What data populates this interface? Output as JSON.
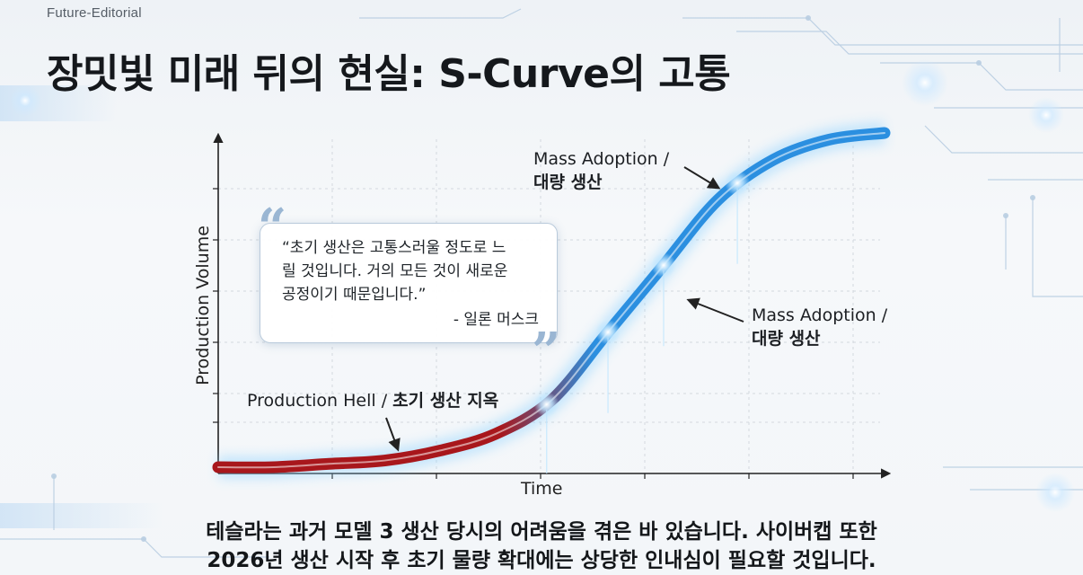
{
  "header": {
    "brand": "Future-Editorial",
    "title": "장밋빛 미래 뒤의 현실: S-Curve의 고통"
  },
  "chart_data": {
    "type": "line",
    "xlabel": "Time",
    "ylabel": "Production Volume",
    "series": [
      {
        "values": [
          0.0,
          0.0,
          0.01,
          0.02,
          0.05,
          0.1,
          0.2,
          0.4,
          0.6,
          0.8,
          0.92,
          0.98,
          1.0
        ]
      }
    ],
    "grid": true
  },
  "annotations": {
    "production_hell": {
      "en": "Production Hell / ",
      "kr": "초기 생산 지옥"
    },
    "mass_adoption_top": {
      "en": "Mass Adoption /",
      "kr": "대량 생산"
    },
    "mass_adoption_right": {
      "en": "Mass Adoption /",
      "kr": "대량 생산"
    }
  },
  "quote": {
    "lines": [
      "“초기 생산은 고통스러울 정도로 느",
      "릴 것입니다. 거의 모든 것이 새로운",
      "공정이기 때문입니다.”"
    ],
    "author": "- 일론 머스크",
    "open_mark": "“",
    "close_mark": "”"
  },
  "caption": {
    "line1": "테슬라는 과거 모델 3 생산 당시의 어려움을 겪은 바 있습니다. 사이버캡 또한",
    "line2": "2026년 생산 시작 후 초기 물량 확대에는 상당한 인내심이 필요할 것입니다."
  },
  "colors": {
    "curve_start": "#a8171c",
    "curve_end": "#2b8fe0",
    "glow": "#8fd3ff",
    "accent_tech": "#a9c4de"
  }
}
